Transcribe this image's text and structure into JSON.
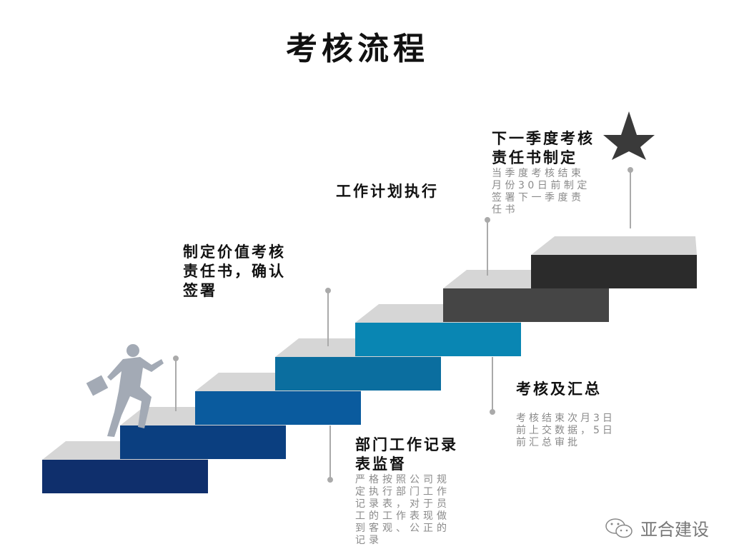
{
  "title": "考核流程",
  "steps": [
    {
      "heading": "制定价值考核责任书，确认签署",
      "heading_lines": [
        "制定价值考核",
        "责任书，确认",
        "签署"
      ]
    },
    {
      "heading": "部门工作记录表监督",
      "heading_lines": [
        "部门工作记录",
        "表监督"
      ],
      "description_lines": [
        "严格按照公司规",
        "定执行部门工作",
        "记录表，对于员",
        "工的工作表现做",
        "到客观、公正的",
        "记录"
      ]
    },
    {
      "heading": "工作计划执行",
      "heading_lines": [
        "工作计划执行"
      ]
    },
    {
      "heading": "考核及汇总",
      "heading_lines": [
        "考核及汇总"
      ],
      "description_lines": [
        "考核结束次月3日",
        "前上交数据，5日",
        "前汇总审批"
      ]
    },
    {
      "heading": "下一季度考核责任书制定",
      "heading_lines": [
        "下一季度考核",
        "责任书制定"
      ],
      "description_lines": [
        "当季度考核结束",
        "月份30日前制定",
        "签署下一季度责",
        "任书"
      ]
    }
  ],
  "stair_colors": [
    "#0f2f6c",
    "#0b3f80",
    "#0a5b9e",
    "#0b6e9f",
    "#0986b3",
    "#454545",
    "#2b2b2b"
  ],
  "stair_top_color": "#d6d6d6",
  "icons": [
    "runner-figure",
    "star-icon",
    "wechat-icon"
  ],
  "watermark": "亚合建设"
}
